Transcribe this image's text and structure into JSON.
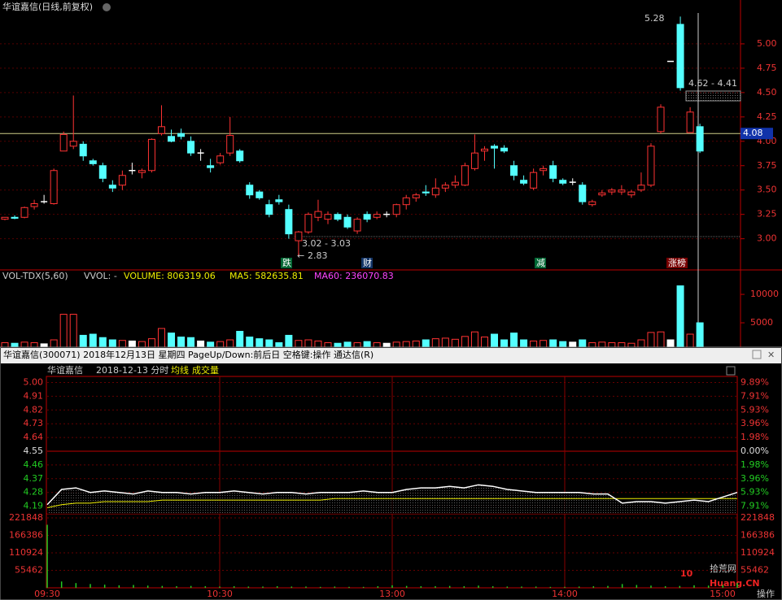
{
  "window": {
    "title": "华谊嘉信(日线,前复权)"
  },
  "kline": {
    "type": "candlestick",
    "candles": [
      [
        3.2,
        3.22,
        3.19,
        3.22
      ],
      [
        3.22,
        3.24,
        3.2,
        3.21
      ],
      [
        3.22,
        3.33,
        3.21,
        3.32
      ],
      [
        3.33,
        3.4,
        3.3,
        3.36
      ],
      [
        3.38,
        3.45,
        3.36,
        3.38
      ],
      [
        3.36,
        3.72,
        3.35,
        3.7
      ],
      [
        3.9,
        4.1,
        3.9,
        4.07
      ],
      [
        3.95,
        4.47,
        3.92,
        4.0
      ],
      [
        3.97,
        4.0,
        3.8,
        3.85
      ],
      [
        3.8,
        3.82,
        3.75,
        3.77
      ],
      [
        3.75,
        3.78,
        3.58,
        3.62
      ],
      [
        3.55,
        3.6,
        3.48,
        3.52
      ],
      [
        3.55,
        3.7,
        3.5,
        3.65
      ],
      [
        3.7,
        3.78,
        3.66,
        3.7
      ],
      [
        3.68,
        3.72,
        3.62,
        3.7
      ],
      [
        3.7,
        4.03,
        3.68,
        4.02
      ],
      [
        4.08,
        4.37,
        4.06,
        4.15
      ],
      [
        4.05,
        4.12,
        3.99,
        4.0
      ],
      [
        4.08,
        4.13,
        4.02,
        4.05
      ],
      [
        4.0,
        4.05,
        3.85,
        3.88
      ],
      [
        3.88,
        3.92,
        3.8,
        3.88
      ],
      [
        3.75,
        3.82,
        3.68,
        3.73
      ],
      [
        3.78,
        3.88,
        3.76,
        3.85
      ],
      [
        3.88,
        4.25,
        3.85,
        4.06
      ],
      [
        3.9,
        3.92,
        3.78,
        3.8
      ],
      [
        3.55,
        3.58,
        3.41,
        3.45
      ],
      [
        3.48,
        3.5,
        3.4,
        3.42
      ],
      [
        3.35,
        3.4,
        3.22,
        3.25
      ],
      [
        3.4,
        3.45,
        3.35,
        3.38
      ],
      [
        3.3,
        3.35,
        3.0,
        3.05
      ],
      [
        2.98,
        3.08,
        2.83,
        3.07
      ],
      [
        3.07,
        3.27,
        3.05,
        3.25
      ],
      [
        3.22,
        3.4,
        3.18,
        3.28
      ],
      [
        3.2,
        3.28,
        3.15,
        3.25
      ],
      [
        3.25,
        3.27,
        3.18,
        3.2
      ],
      [
        3.22,
        3.25,
        3.1,
        3.12
      ],
      [
        3.08,
        3.22,
        3.05,
        3.2
      ],
      [
        3.25,
        3.28,
        3.17,
        3.2
      ],
      [
        3.22,
        3.28,
        3.2,
        3.25
      ],
      [
        3.25,
        3.28,
        3.22,
        3.25
      ],
      [
        3.25,
        3.36,
        3.22,
        3.35
      ],
      [
        3.35,
        3.45,
        3.3,
        3.42
      ],
      [
        3.42,
        3.47,
        3.38,
        3.45
      ],
      [
        3.48,
        3.55,
        3.44,
        3.47
      ],
      [
        3.45,
        3.62,
        3.42,
        3.52
      ],
      [
        3.52,
        3.58,
        3.48,
        3.55
      ],
      [
        3.55,
        3.65,
        3.52,
        3.58
      ],
      [
        3.55,
        3.78,
        3.54,
        3.75
      ],
      [
        3.72,
        4.07,
        3.7,
        3.88
      ],
      [
        3.9,
        3.95,
        3.8,
        3.92
      ],
      [
        3.95,
        3.97,
        3.72,
        3.93
      ],
      [
        3.93,
        3.96,
        3.88,
        3.9
      ],
      [
        3.75,
        3.8,
        3.6,
        3.65
      ],
      [
        3.6,
        3.65,
        3.55,
        3.57
      ],
      [
        3.52,
        3.72,
        3.5,
        3.68
      ],
      [
        3.7,
        3.75,
        3.65,
        3.72
      ],
      [
        3.75,
        3.8,
        3.58,
        3.62
      ],
      [
        3.6,
        3.62,
        3.55,
        3.57
      ],
      [
        3.58,
        3.62,
        3.55,
        3.58
      ],
      [
        3.55,
        3.58,
        3.35,
        3.38
      ],
      [
        3.35,
        3.4,
        3.33,
        3.38
      ],
      [
        3.45,
        3.5,
        3.43,
        3.47
      ],
      [
        3.48,
        3.52,
        3.45,
        3.5
      ],
      [
        3.48,
        3.55,
        3.45,
        3.5
      ],
      [
        3.45,
        3.5,
        3.42,
        3.48
      ],
      [
        3.5,
        3.68,
        3.48,
        3.55
      ],
      [
        3.55,
        3.98,
        3.53,
        3.95
      ],
      [
        4.1,
        4.38,
        4.08,
        4.35
      ],
      [
        4.82,
        4.82,
        4.82,
        4.82
      ],
      [
        5.2,
        5.28,
        4.52,
        4.55
      ],
      [
        4.09,
        4.35,
        4.09,
        4.3
      ],
      [
        4.15,
        4.18,
        3.88,
        3.9
      ]
    ],
    "ylim": [
      2.68,
      5.45
    ],
    "yticks": [
      {
        "value": 5,
        "label": "5.00"
      },
      4.75,
      {
        "value": 4.5,
        "label": "4.50"
      },
      4.25,
      {
        "value": 4,
        "label": "4.00"
      },
      3.75,
      {
        "value": 3.5,
        "label": "3.50"
      },
      3.25,
      {
        "value": 3,
        "label": "3.00"
      }
    ],
    "last_price": {
      "value": 4.08,
      "label": "4.08"
    },
    "annotations": [
      "5.28",
      "4.62 - 4.41",
      "3.02 - 3.03",
      "2.83"
    ],
    "event_tags": [
      "跌",
      "财",
      "减",
      "涨榜"
    ]
  },
  "volume": {
    "type": "bar",
    "title": "VOL-TDX(5,60)",
    "vvol": "VVOL: -",
    "volume_label": "VOLUME: 806319.06",
    "ma5_label": "MA5: 582635.81",
    "ma60_label": "MA60: 236070.83",
    "values": [
      1500,
      1400,
      1600,
      1500,
      1300,
      2000,
      6500,
      6500,
      2800,
      3000,
      2400,
      2000,
      1900,
      1800,
      1700,
      2200,
      4000,
      3200,
      2500,
      2400,
      1800,
      1600,
      1700,
      2000,
      3500,
      2500,
      2200,
      2000,
      1500,
      2800,
      1900,
      2000,
      1800,
      1500,
      1400,
      1600,
      1500,
      1700,
      1500,
      1400,
      1600,
      1700,
      1800,
      2000,
      2200,
      2300,
      2100,
      2600,
      3400,
      2500,
      3000,
      2000,
      3200,
      2000,
      1800,
      1900,
      2000,
      1700,
      1600,
      2000,
      1500,
      1600,
      1500,
      1500,
      1400,
      2000,
      3300,
      3400,
      2000,
      11500,
      3000,
      5000
    ],
    "ylim": [
      0,
      14300
    ],
    "yticks": [
      10000,
      5000
    ]
  },
  "popup": {
    "title": "华谊嘉信(300071) 2018年12月13日 星期四 PageUp/Down:前后日 空格键:操作 通达信(R)",
    "stock": "华谊嘉信",
    "date": "2018-12-13 分时",
    "avg_legend": "均线",
    "vol_legend": "成交量",
    "type": "line",
    "price": [
      4.2,
      4.3,
      4.31,
      4.28,
      4.29,
      4.28,
      4.27,
      4.29,
      4.28,
      4.28,
      4.27,
      4.28,
      4.28,
      4.29,
      4.28,
      4.27,
      4.28,
      4.28,
      4.27,
      4.28,
      4.28,
      4.28,
      4.29,
      4.28,
      4.28,
      4.3,
      4.31,
      4.31,
      4.32,
      4.31,
      4.33,
      4.32,
      4.3,
      4.29,
      4.28,
      4.28,
      4.28,
      4.28,
      4.27,
      4.27,
      4.21,
      4.22,
      4.22,
      4.21,
      4.22,
      4.23,
      4.22,
      4.25,
      4.28
    ],
    "average": [
      4.18,
      4.2,
      4.21,
      4.21,
      4.22,
      4.22,
      4.22,
      4.22,
      4.23,
      4.23,
      4.23,
      4.23,
      4.23,
      4.23,
      4.23,
      4.23,
      4.23,
      4.23,
      4.23,
      4.23,
      4.24,
      4.24,
      4.24,
      4.24,
      4.24,
      4.24,
      4.24,
      4.24,
      4.24,
      4.24,
      4.24,
      4.24,
      4.24,
      4.24,
      4.24,
      4.24,
      4.24,
      4.24,
      4.24,
      4.24,
      4.24,
      4.24,
      4.24,
      4.24,
      4.24,
      4.24,
      4.24,
      4.24,
      4.24
    ],
    "ylim": [
      4.14,
      5.04
    ],
    "yticks": [
      {
        "value": 5,
        "label": "5.00"
      },
      4.91,
      4.82,
      4.73,
      4.64,
      4.55,
      4.46,
      4.37,
      4.28,
      4.19
    ],
    "pct_ticks": [
      {
        "value": 9.89,
        "label": "9.89%"
      },
      {
        "value": 7.91,
        "label": "7.91%"
      },
      {
        "value": 5.93,
        "label": "5.93%"
      },
      {
        "value": 3.96,
        "label": "3.96%"
      },
      {
        "value": 1.98,
        "label": "1.98%"
      },
      {
        "value": 0,
        "label": "0.00%"
      },
      {
        "value": -1.98,
        "label": "1.98%"
      },
      {
        "value": -3.96,
        "label": "3.96%"
      },
      {
        "value": -5.93,
        "label": "5.93%"
      },
      {
        "value": -7.91,
        "label": "7.91%"
      }
    ],
    "volume": [
      200000,
      20000,
      15000,
      12000,
      10000,
      8000,
      9000,
      7000,
      6000,
      5000,
      6000,
      5000,
      4000,
      5000,
      4000,
      4000,
      5000,
      4000,
      4000,
      3000,
      4000,
      3000,
      3000,
      5000,
      8000,
      6000,
      5000,
      5000,
      6000,
      5000,
      7000,
      5000,
      4000,
      4000,
      4000,
      3000,
      3000,
      4000,
      5000,
      6000,
      12000,
      9000,
      7000,
      5000,
      6000,
      8000,
      7000,
      9000,
      15000
    ],
    "vol_ylim": [
      0,
      234700
    ],
    "vol_ticks": [
      221848,
      166386,
      110924,
      55462
    ],
    "times": [
      "09:30",
      "10:30",
      "13:00",
      "14:00",
      "15:00"
    ]
  },
  "watermark": {
    "logo": "10",
    "site": "拾荒网",
    "domain": "Huang.CN",
    "corner": "操作"
  }
}
